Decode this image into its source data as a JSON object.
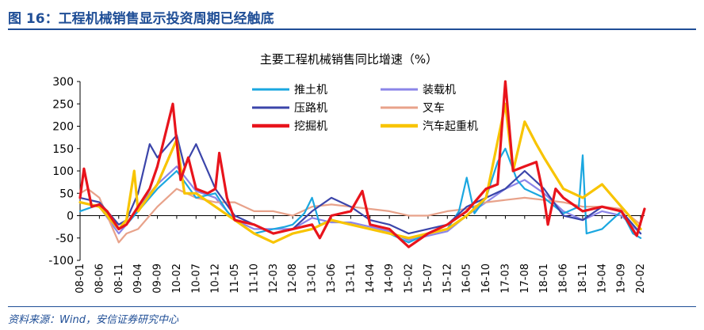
{
  "figure": {
    "title": "图 16：工程机械销售显示投资周期已经触底",
    "source": "资料来源：Wind，安信证券研究中心"
  },
  "chart_data": {
    "type": "line",
    "title": "主要工程机械销售同比增速（%）",
    "xlabel": "",
    "ylabel": "",
    "ylim": [
      -100,
      300
    ],
    "yticks": [
      -100,
      -50,
      0,
      50,
      100,
      150,
      200,
      250,
      300
    ],
    "xlim": [
      "08-01",
      "20-03"
    ],
    "xticks": [
      "08-01",
      "08-06",
      "08-11",
      "09-04",
      "09-09",
      "10-02",
      "10-07",
      "10-12",
      "11-05",
      "11-10",
      "12-03",
      "12-08",
      "13-01",
      "13-06",
      "13-11",
      "14-04",
      "14-09",
      "15-02",
      "15-07",
      "15-12",
      "16-05",
      "16-10",
      "17-03",
      "17-08",
      "18-01",
      "18-06",
      "18-11",
      "19-04",
      "19-09",
      "20-02"
    ],
    "grid": false,
    "legend_position": "top-center",
    "series": [
      {
        "name": "推土机",
        "color": "#1aa7e0",
        "points": [
          [
            "08-01",
            10
          ],
          [
            "08-06",
            25
          ],
          [
            "08-11",
            -30
          ],
          [
            "09-01",
            -20
          ],
          [
            "09-04",
            10
          ],
          [
            "09-09",
            60
          ],
          [
            "10-02",
            100
          ],
          [
            "10-07",
            40
          ],
          [
            "10-12",
            50
          ],
          [
            "11-03",
            10
          ],
          [
            "11-05",
            -10
          ],
          [
            "11-10",
            -40
          ],
          [
            "12-03",
            -30
          ],
          [
            "12-06",
            -25
          ],
          [
            "12-08",
            -20
          ],
          [
            "12-11",
            5
          ],
          [
            "13-01",
            40
          ],
          [
            "13-03",
            -20
          ],
          [
            "13-06",
            -10
          ],
          [
            "13-11",
            -20
          ],
          [
            "14-04",
            -30
          ],
          [
            "14-09",
            -40
          ],
          [
            "15-02",
            -60
          ],
          [
            "15-07",
            -40
          ],
          [
            "15-12",
            -30
          ],
          [
            "16-03",
            10
          ],
          [
            "16-05",
            85
          ],
          [
            "16-07",
            5
          ],
          [
            "16-10",
            40
          ],
          [
            "17-01",
            120
          ],
          [
            "17-03",
            150
          ],
          [
            "17-06",
            80
          ],
          [
            "17-08",
            60
          ],
          [
            "18-01",
            40
          ],
          [
            "18-06",
            5
          ],
          [
            "18-10",
            20
          ],
          [
            "18-11",
            135
          ],
          [
            "18-12",
            -40
          ],
          [
            "19-04",
            -30
          ],
          [
            "19-09",
            10
          ],
          [
            "19-12",
            -40
          ],
          [
            "20-02",
            -50
          ]
        ]
      },
      {
        "name": "装载机",
        "color": "#8b85e8",
        "points": [
          [
            "08-01",
            30
          ],
          [
            "08-06",
            20
          ],
          [
            "08-11",
            -40
          ],
          [
            "09-01",
            -20
          ],
          [
            "09-04",
            20
          ],
          [
            "09-09",
            70
          ],
          [
            "10-02",
            110
          ],
          [
            "10-07",
            55
          ],
          [
            "10-12",
            40
          ],
          [
            "11-05",
            -10
          ],
          [
            "11-10",
            -30
          ],
          [
            "12-03",
            -30
          ],
          [
            "12-08",
            -30
          ],
          [
            "13-01",
            -5
          ],
          [
            "13-06",
            -15
          ],
          [
            "13-11",
            -15
          ],
          [
            "14-04",
            -25
          ],
          [
            "14-09",
            -35
          ],
          [
            "15-02",
            -55
          ],
          [
            "15-07",
            -45
          ],
          [
            "15-12",
            -35
          ],
          [
            "16-05",
            0
          ],
          [
            "16-10",
            30
          ],
          [
            "17-03",
            60
          ],
          [
            "17-08",
            80
          ],
          [
            "18-01",
            50
          ],
          [
            "18-06",
            10
          ],
          [
            "18-11",
            -10
          ],
          [
            "19-04",
            10
          ],
          [
            "19-09",
            0
          ],
          [
            "20-02",
            -40
          ]
        ]
      },
      {
        "name": "压路机",
        "color": "#3b45aa",
        "points": [
          [
            "08-01",
            40
          ],
          [
            "08-06",
            30
          ],
          [
            "08-11",
            -20
          ],
          [
            "09-01",
            -10
          ],
          [
            "09-04",
            50
          ],
          [
            "09-07",
            160
          ],
          [
            "09-09",
            130
          ],
          [
            "10-02",
            180
          ],
          [
            "10-04",
            110
          ],
          [
            "10-07",
            160
          ],
          [
            "10-12",
            60
          ],
          [
            "11-05",
            0
          ],
          [
            "11-10",
            -20
          ],
          [
            "12-03",
            -40
          ],
          [
            "12-08",
            -30
          ],
          [
            "13-01",
            10
          ],
          [
            "13-06",
            40
          ],
          [
            "13-11",
            20
          ],
          [
            "14-04",
            -10
          ],
          [
            "14-09",
            -20
          ],
          [
            "15-02",
            -40
          ],
          [
            "15-07",
            -30
          ],
          [
            "15-12",
            -20
          ],
          [
            "16-05",
            20
          ],
          [
            "16-10",
            40
          ],
          [
            "17-03",
            60
          ],
          [
            "17-08",
            100
          ],
          [
            "18-01",
            60
          ],
          [
            "18-06",
            0
          ],
          [
            "18-11",
            -10
          ],
          [
            "19-04",
            20
          ],
          [
            "19-09",
            10
          ],
          [
            "20-02",
            -40
          ]
        ]
      },
      {
        "name": "叉车",
        "color": "#e8a28a",
        "points": [
          [
            "08-01",
            50
          ],
          [
            "08-03",
            60
          ],
          [
            "08-06",
            40
          ],
          [
            "08-11",
            -60
          ],
          [
            "09-01",
            -40
          ],
          [
            "09-04",
            -30
          ],
          [
            "09-09",
            20
          ],
          [
            "10-02",
            60
          ],
          [
            "10-07",
            40
          ],
          [
            "10-12",
            30
          ],
          [
            "11-05",
            30
          ],
          [
            "11-10",
            10
          ],
          [
            "12-03",
            10
          ],
          [
            "12-08",
            0
          ],
          [
            "13-01",
            20
          ],
          [
            "13-06",
            25
          ],
          [
            "13-11",
            20
          ],
          [
            "14-04",
            15
          ],
          [
            "14-09",
            10
          ],
          [
            "15-02",
            0
          ],
          [
            "15-07",
            0
          ],
          [
            "15-12",
            10
          ],
          [
            "16-05",
            15
          ],
          [
            "16-10",
            30
          ],
          [
            "17-03",
            35
          ],
          [
            "17-08",
            40
          ],
          [
            "18-01",
            35
          ],
          [
            "18-06",
            30
          ],
          [
            "18-11",
            20
          ],
          [
            "19-04",
            20
          ],
          [
            "19-09",
            15
          ],
          [
            "20-02",
            -20
          ]
        ]
      },
      {
        "name": "挖掘机",
        "color": "#e8141c",
        "points": [
          [
            "08-01",
            40
          ],
          [
            "08-02",
            105
          ],
          [
            "08-04",
            20
          ],
          [
            "08-06",
            25
          ],
          [
            "08-08",
            10
          ],
          [
            "08-11",
            -30
          ],
          [
            "09-01",
            -20
          ],
          [
            "09-04",
            20
          ],
          [
            "09-07",
            60
          ],
          [
            "09-09",
            110
          ],
          [
            "10-01",
            250
          ],
          [
            "10-03",
            80
          ],
          [
            "10-05",
            130
          ],
          [
            "10-07",
            60
          ],
          [
            "10-10",
            50
          ],
          [
            "10-12",
            60
          ],
          [
            "11-01",
            140
          ],
          [
            "11-03",
            40
          ],
          [
            "11-05",
            -10
          ],
          [
            "11-10",
            -20
          ],
          [
            "12-03",
            -40
          ],
          [
            "12-08",
            -30
          ],
          [
            "13-01",
            -20
          ],
          [
            "13-03",
            -50
          ],
          [
            "13-06",
            0
          ],
          [
            "13-11",
            10
          ],
          [
            "14-02",
            55
          ],
          [
            "14-04",
            -20
          ],
          [
            "14-09",
            -30
          ],
          [
            "15-02",
            -70
          ],
          [
            "15-07",
            -40
          ],
          [
            "15-12",
            -20
          ],
          [
            "16-05",
            10
          ],
          [
            "16-10",
            60
          ],
          [
            "17-01",
            70
          ],
          [
            "17-03",
            300
          ],
          [
            "17-05",
            100
          ],
          [
            "17-08",
            110
          ],
          [
            "17-11",
            120
          ],
          [
            "18-01",
            40
          ],
          [
            "18-02",
            -20
          ],
          [
            "18-04",
            60
          ],
          [
            "18-06",
            40
          ],
          [
            "18-11",
            10
          ],
          [
            "19-04",
            20
          ],
          [
            "19-09",
            10
          ],
          [
            "20-01",
            -45
          ],
          [
            "20-03",
            15
          ]
        ]
      },
      {
        "name": "汽车起重机",
        "color": "#f8c400",
        "points": [
          [
            "08-01",
            30
          ],
          [
            "08-06",
            20
          ],
          [
            "08-11",
            -30
          ],
          [
            "09-01",
            -10
          ],
          [
            "09-03",
            100
          ],
          [
            "09-04",
            10
          ],
          [
            "09-09",
            70
          ],
          [
            "10-02",
            170
          ],
          [
            "10-04",
            50
          ],
          [
            "10-07",
            50
          ],
          [
            "10-12",
            20
          ],
          [
            "11-05",
            -10
          ],
          [
            "11-10",
            -40
          ],
          [
            "12-03",
            -60
          ],
          [
            "12-08",
            -40
          ],
          [
            "13-01",
            -30
          ],
          [
            "13-06",
            -10
          ],
          [
            "13-11",
            -20
          ],
          [
            "14-04",
            -30
          ],
          [
            "14-09",
            -40
          ],
          [
            "15-02",
            -50
          ],
          [
            "15-07",
            -40
          ],
          [
            "15-12",
            -30
          ],
          [
            "16-05",
            0
          ],
          [
            "16-10",
            40
          ],
          [
            "17-03",
            250
          ],
          [
            "17-05",
            100
          ],
          [
            "17-08",
            210
          ],
          [
            "17-11",
            160
          ],
          [
            "18-01",
            130
          ],
          [
            "18-06",
            60
          ],
          [
            "18-11",
            40
          ],
          [
            "19-04",
            70
          ],
          [
            "19-09",
            20
          ],
          [
            "20-02",
            -30
          ]
        ]
      }
    ]
  }
}
